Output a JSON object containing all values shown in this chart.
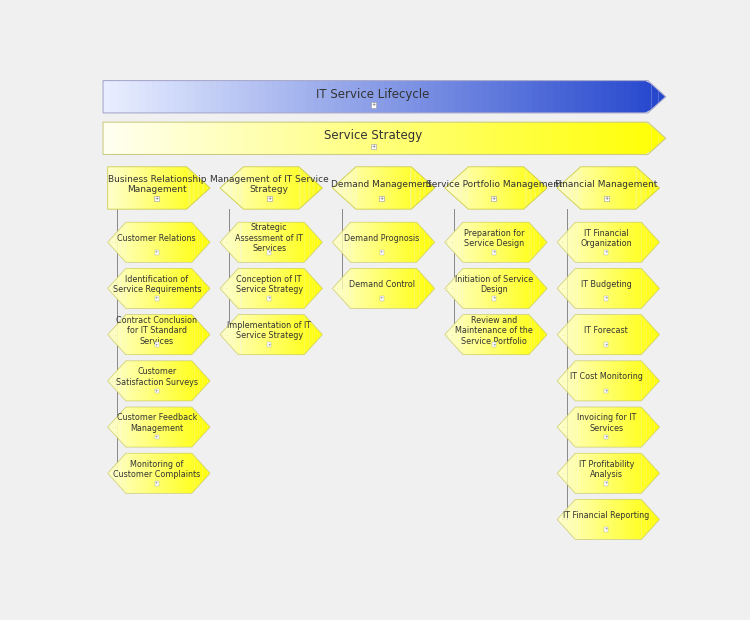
{
  "bg_color": "#f0f0f0",
  "banner1_text": "IT Service Lifecycle",
  "banner2_text": "Service Strategy",
  "columns": [
    {
      "header": "Business Relationship\nManagement",
      "items": [
        "Customer Relations",
        "Identification of\nService Requirements",
        "Contract Conclusion\nfor IT Standard\nServices",
        "Customer\nSatisfaction Surveys",
        "Customer Feedback\nManagement",
        "Monitoring of\nCustomer Complaints"
      ]
    },
    {
      "header": "Management of IT Service\nStrategy",
      "items": [
        "Strategic\nAssessment of IT\nServices",
        "Conception of IT\nService Strategy",
        "Implementation of IT\nService Strategy"
      ]
    },
    {
      "header": "Demand Management",
      "items": [
        "Demand Prognosis",
        "Demand Control"
      ]
    },
    {
      "header": "Service Portfolio Management",
      "items": [
        "Preparation for\nService Design",
        "Initiation of Service\nDesign",
        "Review and\nMaintenance of the\nService Portfolio"
      ]
    },
    {
      "header": "Financial Management",
      "items": [
        "IT Financial\nOrganization",
        "IT Budgeting",
        "IT Forecast",
        "IT Cost Monitoring",
        "Invoicing for IT\nServices",
        "IT Profitability\nAnalysis",
        "IT Financial Reporting"
      ]
    }
  ],
  "banner1_color_left": "#e8eeff",
  "banner1_color_right": "#2244cc",
  "banner2_color_left": "#fffff0",
  "banner2_color_right": "#ffff00",
  "header_fill": "#ffff55",
  "header_border": "#cccc44",
  "item_fill_left": "#ffffcc",
  "item_fill_right": "#ffff00",
  "item_border": "#cccc66",
  "line_color": "#888888",
  "text_color": "#333333",
  "font_size_banner": 8.5,
  "font_size_header": 6.5,
  "font_size_item": 5.8
}
